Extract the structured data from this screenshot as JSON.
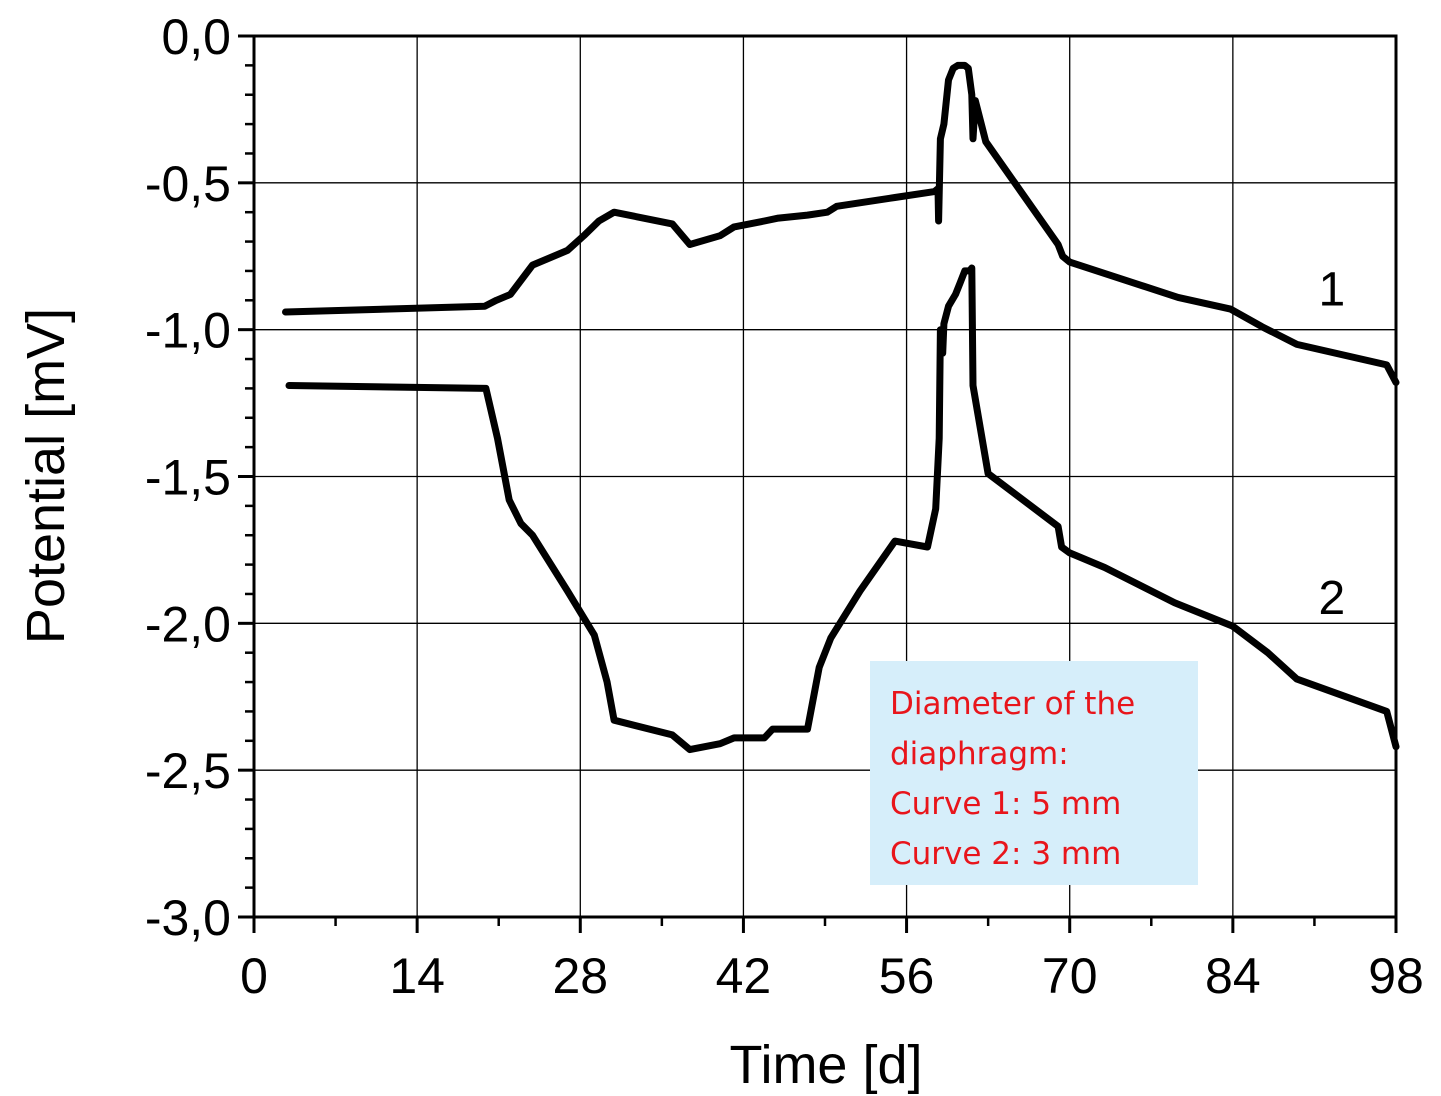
{
  "chart_data": {
    "type": "line",
    "title": "",
    "xlabel": "Time [d]",
    "ylabel": "Potential [mV]",
    "xlim": [
      0,
      98
    ],
    "ylim": [
      -3.0,
      0.0
    ],
    "x_ticks": [
      0,
      14,
      28,
      42,
      56,
      70,
      84,
      98
    ],
    "x_tick_labels": [
      "0",
      "14",
      "28",
      "42",
      "56",
      "70",
      "84",
      "98"
    ],
    "y_ticks": [
      0.0,
      -0.5,
      -1.0,
      -1.5,
      -2.0,
      -2.5,
      -3.0
    ],
    "y_tick_labels": [
      "0,0",
      "-0,5",
      "-1,0",
      "-1,5",
      "-2,0",
      "-2,5",
      "-3,0"
    ],
    "grid": true,
    "series": [
      {
        "name": "1",
        "color": "#000000",
        "points": [
          [
            2.7,
            -0.94
          ],
          [
            19.8,
            -0.92
          ],
          [
            20.8,
            -0.9
          ],
          [
            22,
            -0.88
          ],
          [
            23.9,
            -0.78
          ],
          [
            26.9,
            -0.73
          ],
          [
            28.3,
            -0.68
          ],
          [
            29.6,
            -0.63
          ],
          [
            30.9,
            -0.6
          ],
          [
            35.9,
            -0.64
          ],
          [
            37.4,
            -0.71
          ],
          [
            40,
            -0.68
          ],
          [
            41.2,
            -0.65
          ],
          [
            43.8,
            -0.63
          ],
          [
            45,
            -0.62
          ],
          [
            47.5,
            -0.61
          ],
          [
            49.2,
            -0.6
          ],
          [
            50,
            -0.58
          ],
          [
            55,
            -0.55
          ],
          [
            58.4,
            -0.53
          ],
          [
            58.7,
            -0.52
          ],
          [
            58.75,
            -0.63
          ],
          [
            58.9,
            -0.35
          ],
          [
            59.2,
            -0.3
          ],
          [
            59.6,
            -0.15
          ],
          [
            60,
            -0.11
          ],
          [
            60.4,
            -0.1
          ],
          [
            61,
            -0.1
          ],
          [
            61.3,
            -0.11
          ],
          [
            61.6,
            -0.2
          ],
          [
            61.7,
            -0.35
          ],
          [
            61.9,
            -0.22
          ],
          [
            62.8,
            -0.36
          ],
          [
            69,
            -0.71
          ],
          [
            69.4,
            -0.75
          ],
          [
            70,
            -0.77
          ],
          [
            79.3,
            -0.89
          ],
          [
            83.8,
            -0.93
          ],
          [
            86.5,
            -0.99
          ],
          [
            89.5,
            -1.05
          ],
          [
            97.2,
            -1.12
          ],
          [
            98,
            -1.18
          ]
        ]
      },
      {
        "name": "2",
        "color": "#000000",
        "points": [
          [
            3,
            -1.19
          ],
          [
            19.9,
            -1.2
          ],
          [
            20.9,
            -1.37
          ],
          [
            21.9,
            -1.58
          ],
          [
            22.9,
            -1.66
          ],
          [
            23.9,
            -1.7
          ],
          [
            26.9,
            -1.89
          ],
          [
            29.2,
            -2.04
          ],
          [
            30.3,
            -2.2
          ],
          [
            30.9,
            -2.33
          ],
          [
            35.9,
            -2.38
          ],
          [
            37.4,
            -2.43
          ],
          [
            40,
            -2.41
          ],
          [
            41.2,
            -2.39
          ],
          [
            43.8,
            -2.39
          ],
          [
            44.5,
            -2.36
          ],
          [
            47.5,
            -2.36
          ],
          [
            48.5,
            -2.15
          ],
          [
            49.5,
            -2.05
          ],
          [
            52,
            -1.89
          ],
          [
            55,
            -1.72
          ],
          [
            57.8,
            -1.74
          ],
          [
            58.5,
            -1.61
          ],
          [
            58.8,
            -1.37
          ],
          [
            58.9,
            -1.0
          ],
          [
            59.1,
            -1.08
          ],
          [
            59.2,
            -0.98
          ],
          [
            59.6,
            -0.92
          ],
          [
            60.2,
            -0.88
          ],
          [
            60.6,
            -0.84
          ],
          [
            61,
            -0.8
          ],
          [
            61.4,
            -0.8
          ],
          [
            61.6,
            -0.79
          ],
          [
            61.7,
            -1.19
          ],
          [
            63,
            -1.49
          ],
          [
            69,
            -1.67
          ],
          [
            69.3,
            -1.74
          ],
          [
            70,
            -1.76
          ],
          [
            73,
            -1.81
          ],
          [
            79,
            -1.93
          ],
          [
            84,
            -2.01
          ],
          [
            87,
            -2.1
          ],
          [
            89.5,
            -2.19
          ],
          [
            97.2,
            -2.3
          ],
          [
            98,
            -2.42
          ]
        ]
      }
    ],
    "annotations": [
      {
        "text": "1",
        "x": 92.5,
        "y": -0.86
      },
      {
        "text": "2",
        "x": 92.5,
        "y": -1.91
      }
    ],
    "note": {
      "lines": [
        "Diameter of the",
        "diaphragm:",
        "Curve 1: 5 mm",
        "Curve 2: 3 mm"
      ],
      "background": "#d6eefa",
      "text_color": "#e8151b"
    }
  }
}
